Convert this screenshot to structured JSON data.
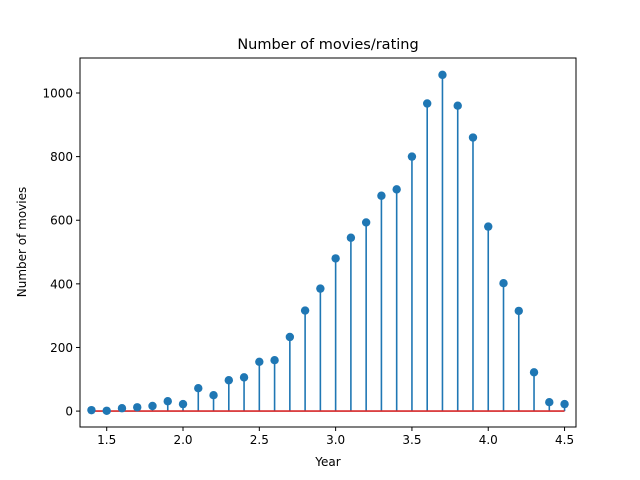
{
  "chart_data": {
    "type": "stem",
    "title": "Number of movies/rating",
    "xlabel": "Year",
    "ylabel": "Number of movies",
    "xlim": [
      1.325,
      4.575
    ],
    "ylim": [
      -50,
      1110
    ],
    "xticks": [
      1.5,
      2.0,
      2.5,
      3.0,
      3.5,
      4.0,
      4.5
    ],
    "xtick_labels": [
      "1.5",
      "2.0",
      "2.5",
      "3.0",
      "3.5",
      "4.0",
      "4.5"
    ],
    "yticks": [
      0,
      200,
      400,
      600,
      800,
      1000
    ],
    "ytick_labels": [
      "0",
      "200",
      "400",
      "600",
      "800",
      "1000"
    ],
    "grid": false,
    "colors": {
      "stem": "#1f77b4",
      "baseline": "#d62728"
    },
    "x": [
      1.4,
      1.5,
      1.6,
      1.7,
      1.8,
      1.9,
      2.0,
      2.1,
      2.2,
      2.3,
      2.4,
      2.5,
      2.6,
      2.7,
      2.8,
      2.9,
      3.0,
      3.1,
      3.2,
      3.3,
      3.4,
      3.5,
      3.6,
      3.7,
      3.8,
      3.9,
      4.0,
      4.1,
      4.2,
      4.3,
      4.4,
      4.5
    ],
    "values": [
      3,
      1,
      9,
      12,
      16,
      31,
      22,
      72,
      50,
      97,
      106,
      155,
      160,
      233,
      316,
      385,
      480,
      545,
      593,
      677,
      697,
      800,
      967,
      1057,
      960,
      860,
      580,
      402,
      315,
      122,
      28,
      22
    ]
  }
}
